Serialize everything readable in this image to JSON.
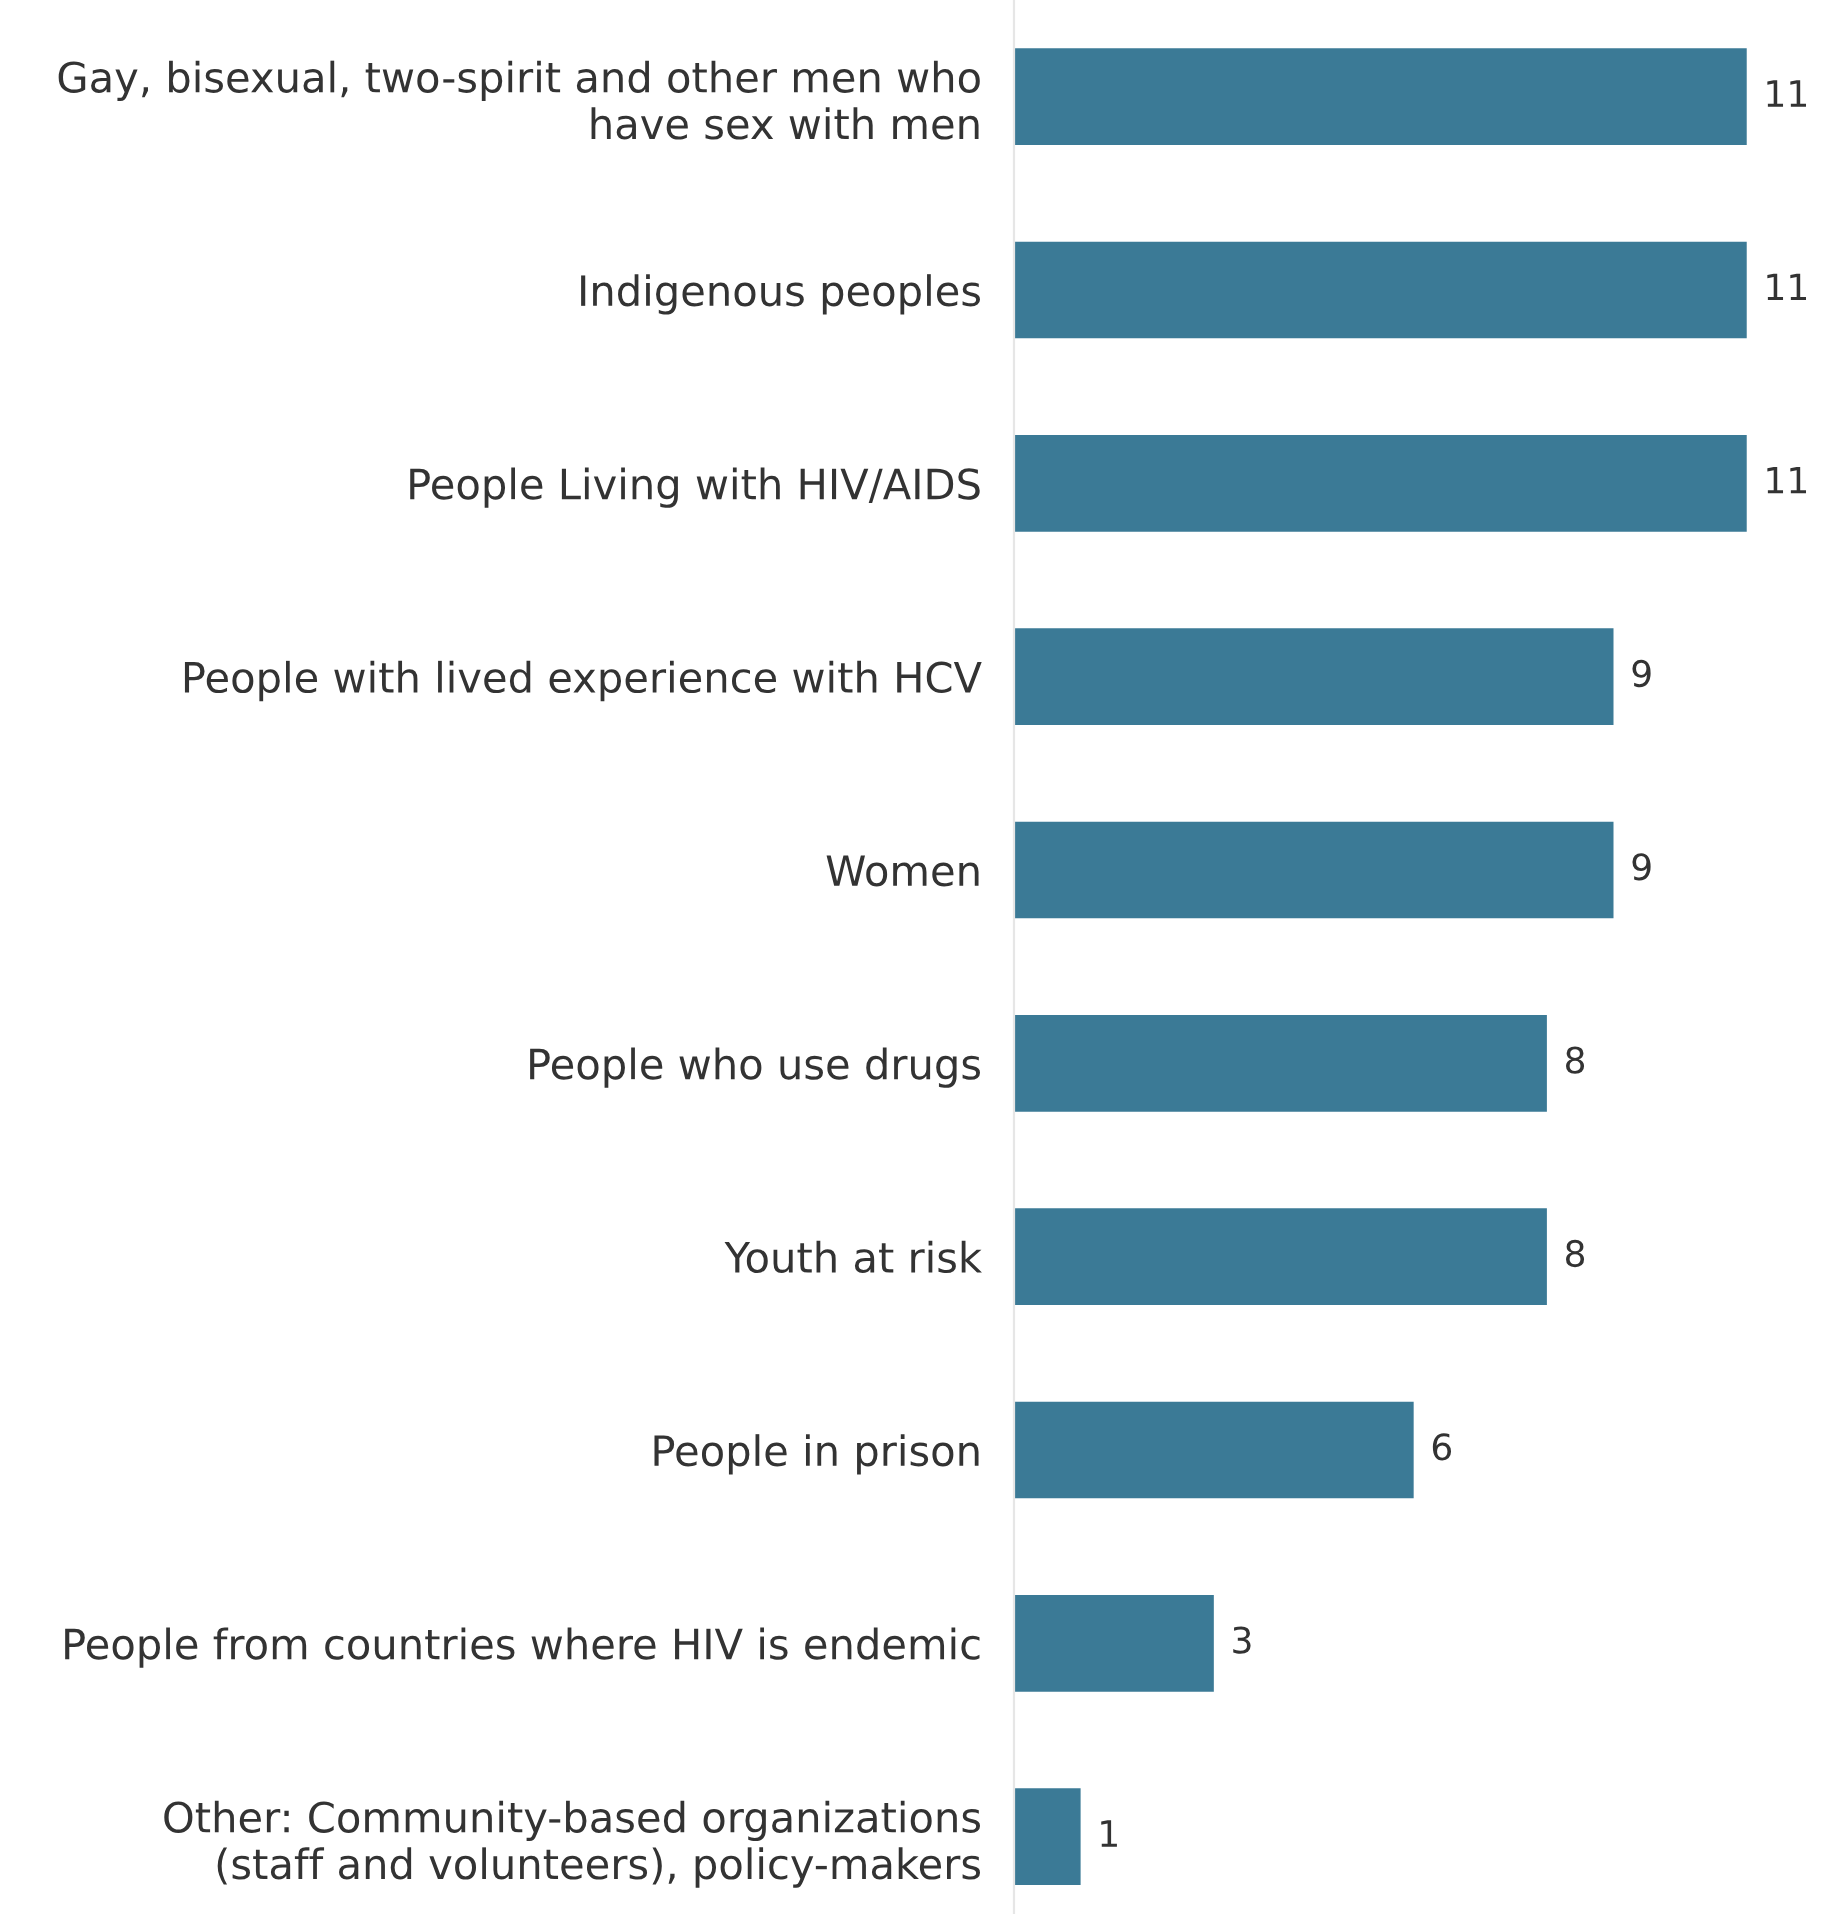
{
  "chart_data": {
    "type": "bar",
    "orientation": "horizontal",
    "categories": [
      "Gay, bisexual, two-spirit and other men who\nhave sex with men",
      "Indigenous peoples",
      "People Living with HIV/AIDS",
      "People with lived experience with HCV",
      "Women",
      "People who use drugs",
      "Youth at risk",
      "People in prison",
      "People from countries where HIV is endemic",
      "Other: Community-based organizations\n(staff and volunteers), policy-makers"
    ],
    "values": [
      11,
      11,
      11,
      9,
      9,
      8,
      8,
      6,
      3,
      1
    ],
    "color": "#3b7a96",
    "data_labels": true,
    "tick_labels": "y",
    "grid": false,
    "legend": false
  }
}
